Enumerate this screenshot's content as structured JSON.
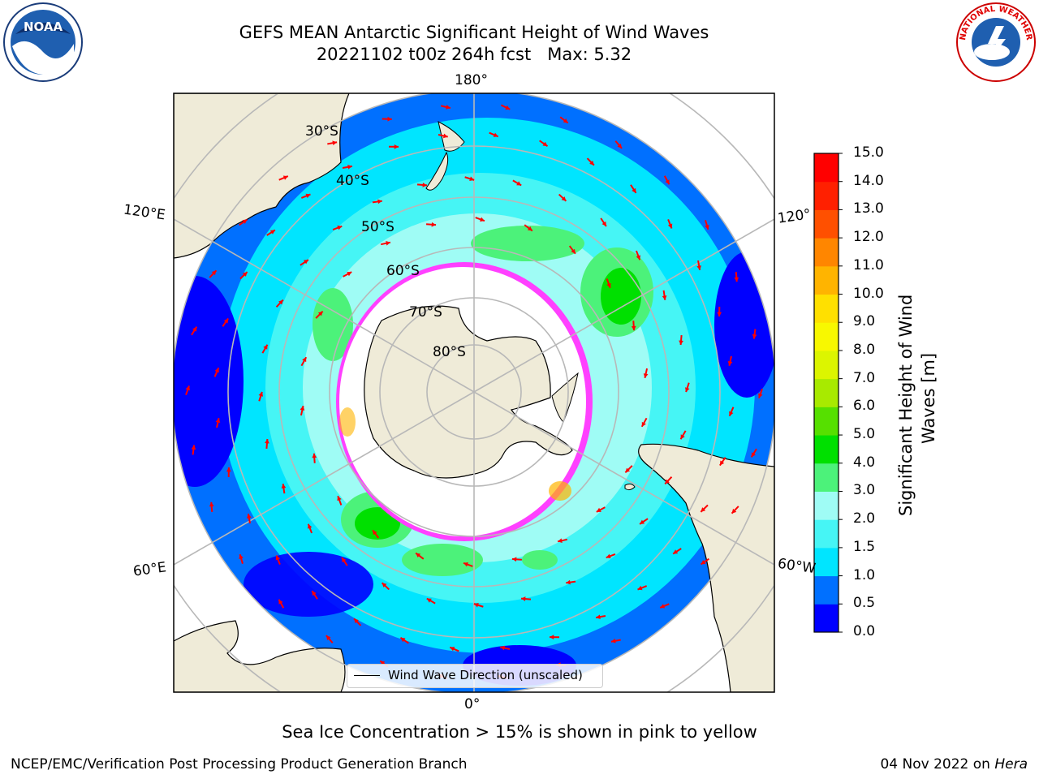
{
  "header": {
    "title_line1": "GEFS MEAN Antarctic Significant Height of Wind Waves",
    "title_line2": "20221102 t00z 264h fcst   Max: 5.32"
  },
  "logos": {
    "noaa": {
      "icon": "noaa-logo",
      "text": "NOAA"
    },
    "nws": {
      "icon": "national-weather-service-logo",
      "text": "NATIONAL WEATHER SERVICE"
    }
  },
  "map": {
    "projection": "south-polar-stereographic",
    "longitude_labels": {
      "top": "180°",
      "bottom": "0°",
      "left_upper": "120°E",
      "left_lower": "60°E",
      "right_upper": "120°",
      "right_lower": "60°W"
    },
    "latitude_labels": [
      "30°S",
      "40°S",
      "50°S",
      "60°S",
      "70°S",
      "80°S"
    ],
    "legend_label": "Wind Wave Direction (unscaled)",
    "colors": {
      "land": "#efebd8",
      "ice_free_shelf": "#ffffff",
      "sea_ice": "#ff40ff",
      "arrows": "#ff0000"
    }
  },
  "colorbar": {
    "label": "Significant Height of Wind Waves [m]",
    "label_line1": "Significant Height of Wind",
    "label_line2": "Waves [m]",
    "ticks": [
      "0.0",
      "0.5",
      "1.0",
      "1.5",
      "2.0",
      "3.0",
      "4.0",
      "5.0",
      "6.0",
      "7.0",
      "8.0",
      "9.0",
      "10.0",
      "11.0",
      "12.0",
      "13.0",
      "14.0",
      "15.0"
    ],
    "colors": [
      "#0000ff",
      "#0070ff",
      "#00e5ff",
      "#46f5f5",
      "#9ffcf5",
      "#4cf27a",
      "#00e000",
      "#56e000",
      "#a8ea00",
      "#dcf500",
      "#f8f800",
      "#ffe000",
      "#ffb400",
      "#ff8600",
      "#ff5000",
      "#ff2000",
      "#ff0000"
    ]
  },
  "note": "Sea Ice Concentration > 15% is shown in pink to yellow",
  "footer": {
    "left": "NCEP/EMC/Verification Post Processing Product Generation Branch",
    "date": "04 Nov 2022 on ",
    "host": "Hera"
  }
}
